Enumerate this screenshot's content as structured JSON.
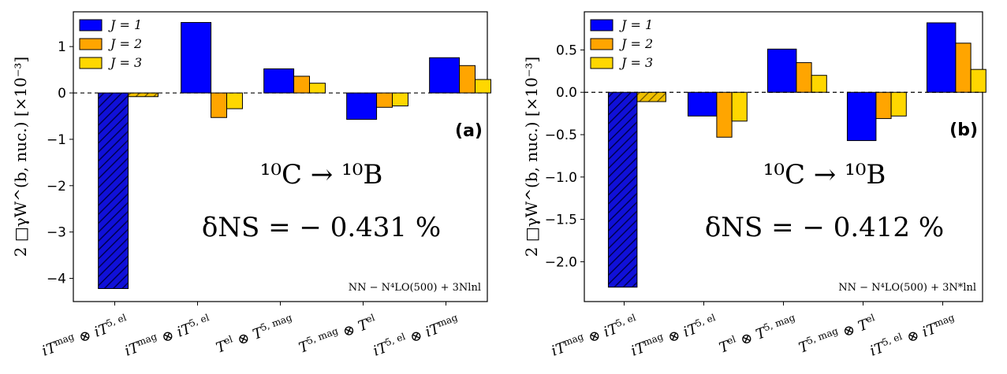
{
  "chart_data": [
    {
      "type": "bar",
      "panel_label": "(a)",
      "categories": [
        "iTmag⊗iT5,el",
        "iTmag⊗iT5,el",
        "Tel⊗T5,mag",
        "T5,mag⊗Tel",
        "iT5,el⊗iTmag"
      ],
      "category_labels": [
        "iT^mag ⊗ iT^5,el",
        "iT^mag ⊗ iT^5,el",
        "T^el ⊗ T^5,mag",
        "T^5,mag ⊗ T^el",
        "iT^5,el ⊗ iT^mag"
      ],
      "series": [
        {
          "name": "J = 1",
          "color": "#0000ff",
          "values": [
            -4.22,
            1.52,
            0.52,
            -0.57,
            0.76
          ]
        },
        {
          "name": "J = 2",
          "color": "#ffa500",
          "values": [
            null,
            -0.53,
            0.36,
            -0.31,
            0.59
          ]
        },
        {
          "name": "J = 3",
          "color": "#ffd700",
          "values": [
            -0.08,
            -0.34,
            0.21,
            -0.28,
            0.29
          ]
        }
      ],
      "hatched_category_index": 0,
      "ylim": [
        -4.5,
        1.75
      ],
      "yticks": [
        -4,
        -3,
        -2,
        -1,
        0,
        1
      ],
      "ytick_labels": [
        "−4",
        "−3",
        "−2",
        "−1",
        "0",
        "1"
      ],
      "ylabel": "2 □γW^(b, nuc.)  [×10⁻³]",
      "reaction": "¹⁰C → ¹⁰B",
      "delta": "δNS = − 0.431 %",
      "annotation": "NN − N⁴LO(500) + 3Nlnl",
      "legend_position": "top-left"
    },
    {
      "type": "bar",
      "panel_label": "(b)",
      "categories": [
        "iTmag⊗iT5,el",
        "iTmag⊗iT5,el",
        "Tel⊗T5,mag",
        "T5,mag⊗Tel",
        "iT5,el⊗iTmag"
      ],
      "category_labels": [
        "iT^mag ⊗ iT^5,el",
        "iT^mag ⊗ iT^5,el",
        "T^el ⊗ T^5,mag",
        "T^5,mag ⊗ T^el",
        "iT^5,el ⊗ iT^mag"
      ],
      "series": [
        {
          "name": "J = 1",
          "color": "#0000ff",
          "values": [
            -2.3,
            -0.28,
            0.51,
            -0.57,
            0.82
          ]
        },
        {
          "name": "J = 2",
          "color": "#ffa500",
          "values": [
            null,
            -0.53,
            0.35,
            -0.31,
            0.58
          ]
        },
        {
          "name": "J = 3",
          "color": "#ffd700",
          "values": [
            -0.11,
            -0.34,
            0.2,
            -0.28,
            0.27
          ]
        }
      ],
      "hatched_category_index": 0,
      "ylim": [
        -2.47,
        0.95
      ],
      "yticks": [
        -2.0,
        -1.5,
        -1.0,
        -0.5,
        0.0,
        0.5
      ],
      "ytick_labels": [
        "−2.0",
        "−1.5",
        "−1.0",
        "−0.5",
        "0.0",
        "0.5"
      ],
      "ylabel": "2 □γW^(b, nuc.)  [×10⁻³]",
      "reaction": "¹⁰C → ¹⁰B",
      "delta": "δNS = − 0.412 %",
      "annotation": "NN − N⁴LO(500) + 3N*lnl",
      "legend_position": "top-left"
    }
  ]
}
